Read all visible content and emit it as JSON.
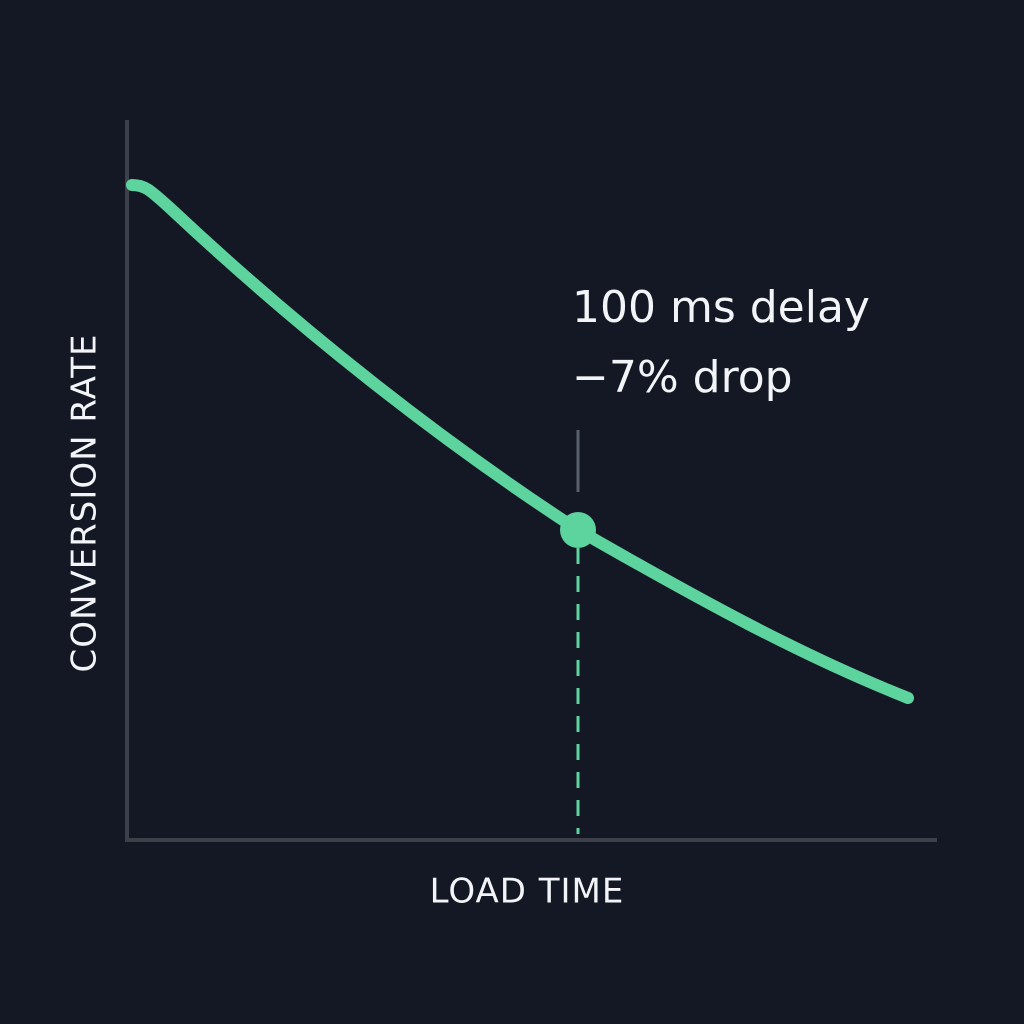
{
  "chart_data": {
    "type": "line",
    "x_label": "LOAD TIME",
    "y_label": "CONVERSION RATE",
    "annotation": [
      "100 ms delay",
      "−7% drop"
    ],
    "color": "#5dd39e"
  }
}
